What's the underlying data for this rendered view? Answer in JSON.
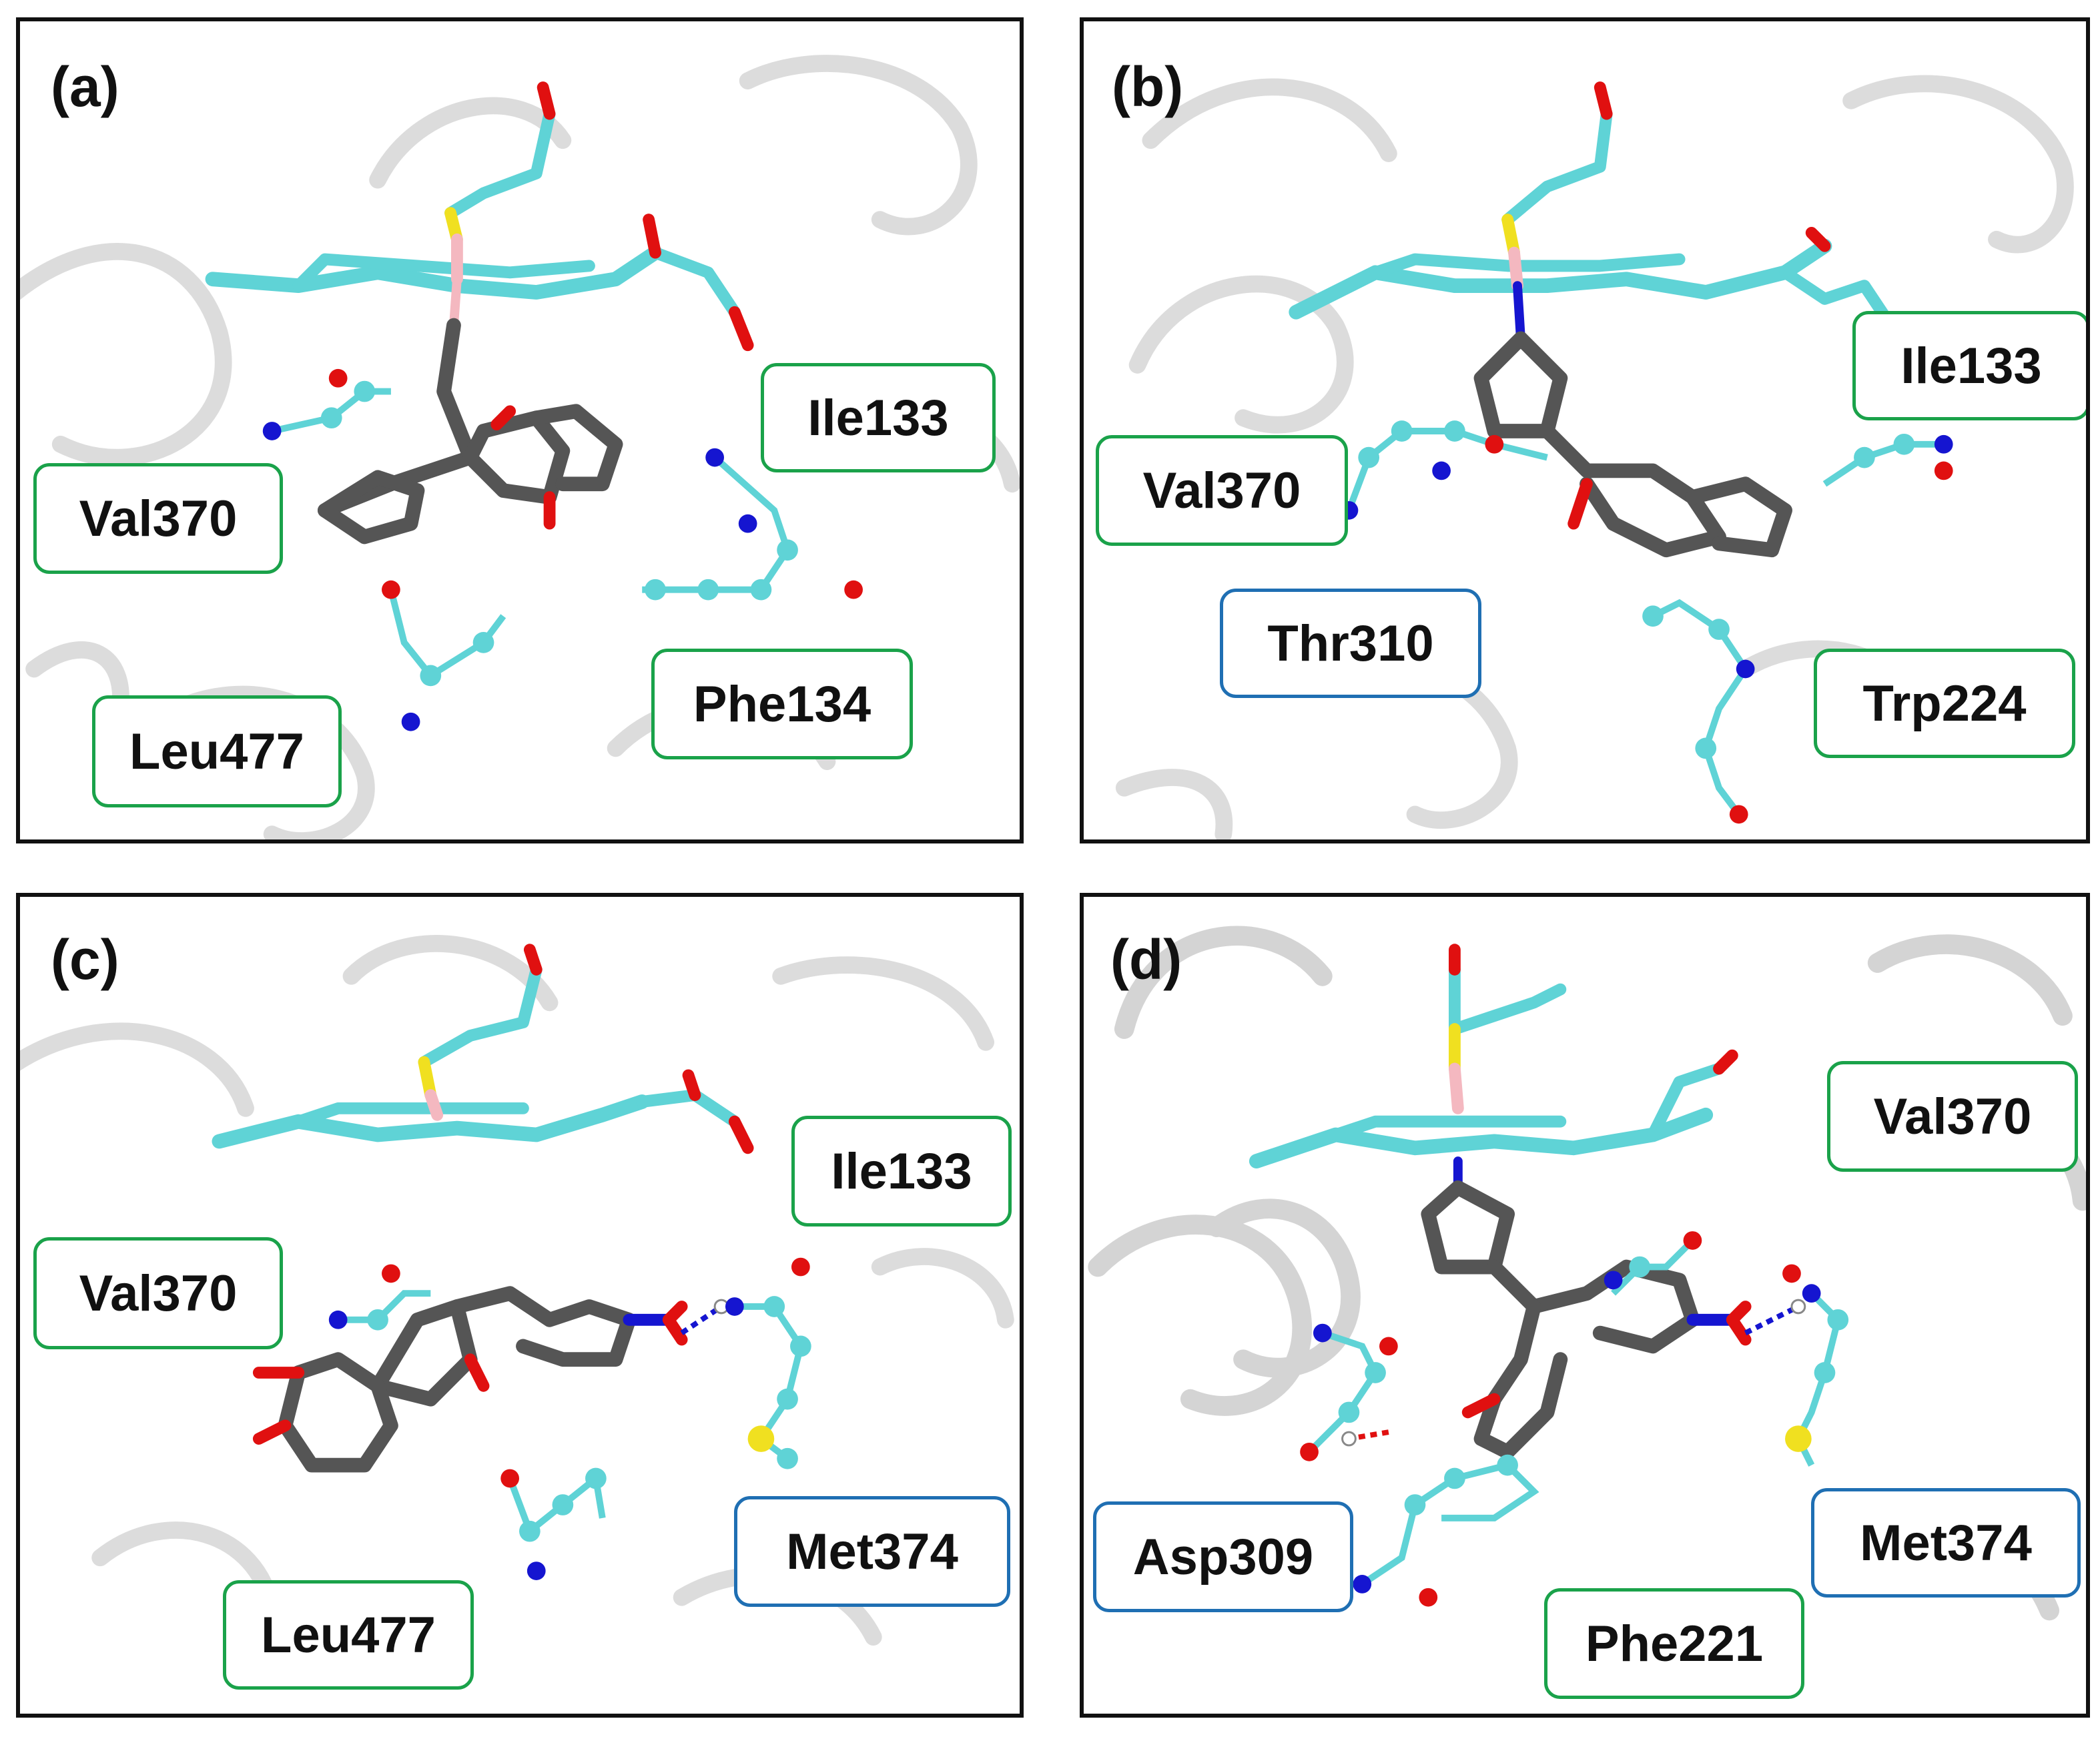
{
  "panels": [
    {
      "id": "a",
      "label": "(a)",
      "residues": [
        {
          "name": "Ile133",
          "hbond": false
        },
        {
          "name": "Val370",
          "hbond": false
        },
        {
          "name": "Phe134",
          "hbond": false
        },
        {
          "name": "Leu477",
          "hbond": false
        }
      ]
    },
    {
      "id": "b",
      "label": "(b)",
      "residues": [
        {
          "name": "Ile133",
          "hbond": false
        },
        {
          "name": "Val370",
          "hbond": false
        },
        {
          "name": "Thr310",
          "hbond": true
        },
        {
          "name": "Trp224",
          "hbond": false
        }
      ]
    },
    {
      "id": "c",
      "label": "(c)",
      "residues": [
        {
          "name": "Ile133",
          "hbond": false
        },
        {
          "name": "Val370",
          "hbond": false
        },
        {
          "name": "Met374",
          "hbond": true
        },
        {
          "name": "Leu477",
          "hbond": false
        }
      ]
    },
    {
      "id": "d",
      "label": "(d)",
      "residues": [
        {
          "name": "Val370",
          "hbond": false
        },
        {
          "name": "Asp309",
          "hbond": true
        },
        {
          "name": "Met374",
          "hbond": true
        },
        {
          "name": "Phe221",
          "hbond": false
        }
      ]
    }
  ],
  "colors": {
    "frame": "#111111",
    "hydrophobic_box": "#1aa24a",
    "hbond_box": "#1f6fb3",
    "heme_carbon": "#5fd3d6",
    "ligand_carbon": "#555555",
    "oxygen": "#e01010",
    "nitrogen": "#1515d0",
    "sulfur": "#f0e020",
    "iron": "#f4b8c0",
    "ribbon": "#d8d8d8"
  }
}
